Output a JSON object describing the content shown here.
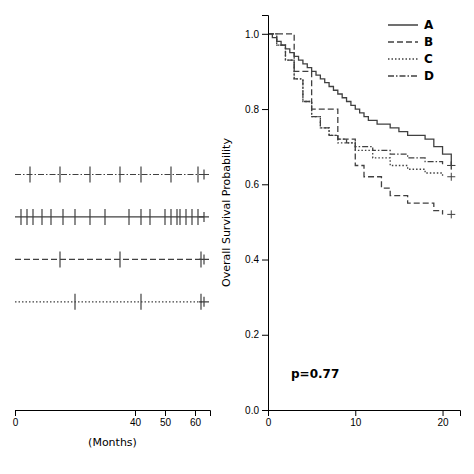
{
  "chart_data": [
    {
      "type": "rug",
      "color": "#404040",
      "xlabel": "(Months)",
      "xlim": [
        0,
        65
      ],
      "xticks": [
        0,
        40,
        50,
        60
      ],
      "series": [
        {
          "line_style": "dashdot",
          "values": [
            5,
            15,
            25,
            35,
            42,
            52,
            61
          ],
          "censored": [
            63
          ]
        },
        {
          "line_style": "solid",
          "values": [
            2,
            4,
            6,
            9,
            12,
            16,
            20,
            25,
            30,
            38,
            42,
            45,
            50,
            52,
            54,
            55,
            57,
            59,
            61
          ],
          "censored": [
            63
          ]
        },
        {
          "line_style": "dashed",
          "values": [
            15,
            35,
            62
          ],
          "censored": [
            63
          ]
        },
        {
          "line_style": "dotted",
          "values": [
            20,
            42,
            62
          ],
          "censored": [
            63
          ]
        }
      ]
    },
    {
      "type": "step",
      "color": "#404040",
      "ylabel": "Overall Survival Probability",
      "annotation": "p=0.77",
      "legend": "upper right",
      "xlim": [
        0,
        22
      ],
      "ylim": [
        0,
        1.05
      ],
      "xticks": [
        0,
        10,
        20
      ],
      "yticks": [
        {
          "value": 0.0,
          "label": "0.0"
        },
        0.2,
        0.4,
        0.6,
        0.8,
        {
          "value": 1.0,
          "label": "1.0"
        }
      ],
      "series": [
        {
          "name": "A",
          "line_style": "solid",
          "x": [
            0,
            0.5,
            1,
            1.5,
            2,
            2.5,
            3,
            3.5,
            4,
            4.5,
            5,
            5.5,
            6,
            6.5,
            7,
            7.5,
            8,
            8.5,
            9,
            9.5,
            10,
            10.5,
            11,
            11.5,
            12,
            12.5,
            13,
            14,
            15,
            16,
            17,
            18,
            19,
            20,
            21
          ],
          "values": [
            1.0,
            0.99,
            0.98,
            0.97,
            0.96,
            0.95,
            0.94,
            0.93,
            0.92,
            0.91,
            0.9,
            0.89,
            0.88,
            0.87,
            0.86,
            0.85,
            0.84,
            0.83,
            0.82,
            0.81,
            0.8,
            0.79,
            0.78,
            0.77,
            0.77,
            0.76,
            0.76,
            0.75,
            0.74,
            0.73,
            0.73,
            0.72,
            0.7,
            0.68,
            0.65
          ],
          "censored_x": [
            21
          ],
          "censored_values": [
            0.65
          ]
        },
        {
          "name": "B",
          "line_style": "dashed",
          "x": [
            0,
            3,
            5,
            8,
            10,
            11,
            13,
            14,
            16,
            19,
            20
          ],
          "values": [
            1.0,
            0.9,
            0.8,
            0.72,
            0.65,
            0.62,
            0.59,
            0.57,
            0.55,
            0.53,
            0.52
          ],
          "censored_x": [
            21
          ],
          "censored_values": [
            0.52
          ]
        },
        {
          "name": "C",
          "line_style": "dotted",
          "x": [
            0,
            1,
            2,
            3,
            4,
            5,
            6,
            7,
            8,
            10,
            12,
            14,
            16,
            18,
            20
          ],
          "values": [
            1.0,
            0.97,
            0.93,
            0.88,
            0.82,
            0.78,
            0.75,
            0.73,
            0.71,
            0.69,
            0.67,
            0.65,
            0.64,
            0.63,
            0.62
          ],
          "censored_x": [
            21
          ],
          "censored_values": [
            0.62
          ]
        },
        {
          "name": "D",
          "line_style": "dashdot",
          "x": [
            0,
            1,
            2,
            3,
            4,
            5,
            6,
            7,
            8,
            9,
            10,
            12,
            14,
            16,
            18,
            20
          ],
          "values": [
            1.0,
            0.97,
            0.93,
            0.88,
            0.82,
            0.78,
            0.75,
            0.73,
            0.72,
            0.71,
            0.7,
            0.69,
            0.68,
            0.67,
            0.66,
            0.65
          ],
          "censored_x": [
            21
          ],
          "censored_values": [
            0.65
          ]
        }
      ]
    }
  ]
}
